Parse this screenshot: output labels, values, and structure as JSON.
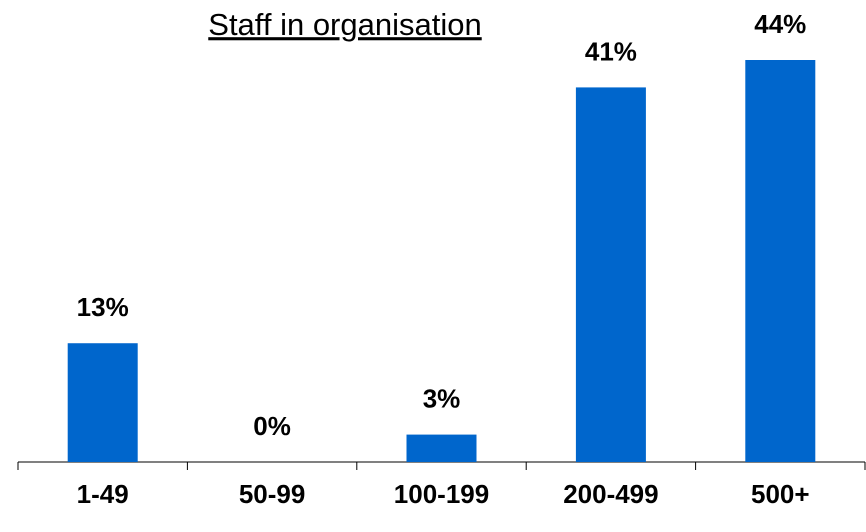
{
  "chart_data": {
    "type": "bar",
    "title": "Staff in organisation",
    "categories": [
      "1-49",
      "50-99",
      "100-199",
      "200-499",
      "500+"
    ],
    "values": [
      13,
      0,
      3,
      41,
      44
    ],
    "value_labels": [
      "13%",
      "0%",
      "3%",
      "41%",
      "44%"
    ],
    "color": "#0066cc"
  }
}
